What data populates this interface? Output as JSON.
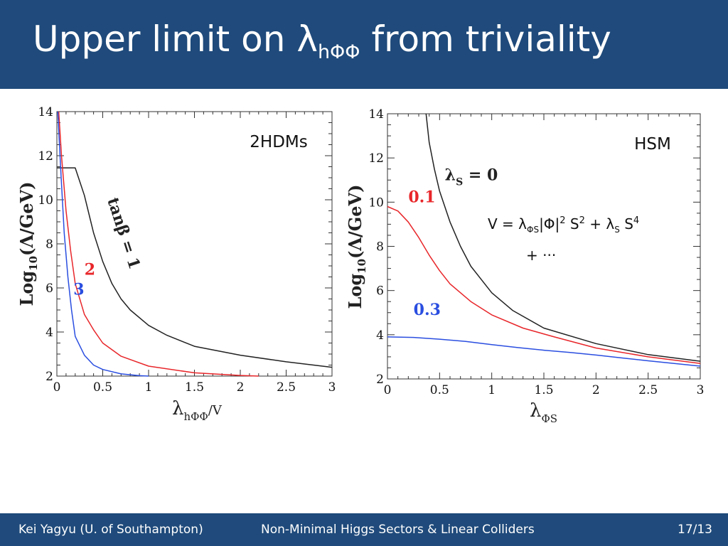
{
  "slide": {
    "title_main": "Upper limit on λ",
    "title_sub": "hΦΦ",
    "title_rest": " from triviality",
    "colors": {
      "header_bg": "#1f4a7b",
      "text": "#ffffff",
      "black_curve": "#222222",
      "red_curve": "#e8262a",
      "blue_curve": "#2a4ee0"
    }
  },
  "footer": {
    "author": "Kei Yagyu (U. of Southampton)",
    "talk": "Non-Minimal Higgs Sectors & Linear Colliders",
    "page": "17/13"
  },
  "chart_data": [
    {
      "type": "line",
      "panel_label": "2HDMs",
      "xlabel_main": "λ",
      "xlabel_sub": "hΦΦ",
      "xlabel_tail": "/V",
      "ylabel_main": "Log",
      "ylabel_sub": "10",
      "ylabel_tail": "(Λ/GeV)",
      "xlim": [
        0,
        3
      ],
      "ylim": [
        2,
        14
      ],
      "xticks": [
        "0",
        "0.5",
        "1",
        "1.5",
        "2",
        "2.5",
        "3"
      ],
      "yticks": [
        "2",
        "4",
        "6",
        "8",
        "10",
        "12",
        "14"
      ],
      "grid": false,
      "series": [
        {
          "name": "tanβ = 1",
          "color": "#222222",
          "x": [
            0,
            0.2,
            0.3,
            0.4,
            0.5,
            0.6,
            0.7,
            0.8,
            1.0,
            1.2,
            1.5,
            2.0,
            2.5,
            3.0
          ],
          "y": [
            11.45,
            11.45,
            10.2,
            8.5,
            7.2,
            6.2,
            5.5,
            5.0,
            4.3,
            3.85,
            3.35,
            2.95,
            2.65,
            2.4
          ]
        },
        {
          "name": "2",
          "color": "#e8262a",
          "x": [
            0.02,
            0.05,
            0.1,
            0.15,
            0.2,
            0.3,
            0.4,
            0.5,
            0.7,
            1.0,
            1.5,
            2.0,
            2.2
          ],
          "y": [
            14,
            12.0,
            9.5,
            7.7,
            6.2,
            4.8,
            4.1,
            3.5,
            2.9,
            2.45,
            2.15,
            2.03,
            2.0
          ]
        },
        {
          "name": "3",
          "color": "#2a4ee0",
          "x": [
            0.01,
            0.04,
            0.08,
            0.12,
            0.16,
            0.2,
            0.3,
            0.4,
            0.5,
            0.7,
            0.9,
            1.0
          ],
          "y": [
            14,
            11.5,
            8.5,
            6.5,
            5.0,
            3.8,
            2.95,
            2.5,
            2.3,
            2.1,
            2.02,
            2.0
          ]
        }
      ],
      "annotations": [
        {
          "text": "tanβ = 1",
          "x": 0.55,
          "y": 10.0,
          "color": "#222222"
        },
        {
          "text": "2",
          "x": 0.3,
          "y": 6.6,
          "color": "#e8262a"
        },
        {
          "text": "3",
          "x": 0.18,
          "y": 5.7,
          "color": "#2a4ee0"
        }
      ]
    },
    {
      "type": "line",
      "panel_label": "HSM",
      "equation_v": "V = λ",
      "equation_sub1": "ΦS",
      "equation_mid": "|Φ|",
      "equation_sup1": "2",
      "equation_s": " S",
      "equation_sup2": "2",
      "equation_plus": " + λ",
      "equation_sub2": "S",
      "equation_s4": " S",
      "equation_sup3": "4",
      "equation_line2": "+ ···",
      "xlabel_main": "λ",
      "xlabel_sub": "ΦS",
      "ylabel_main": "Log",
      "ylabel_sub": "10",
      "ylabel_tail": "(Λ/GeV)",
      "xlim": [
        0,
        3
      ],
      "ylim": [
        2,
        14
      ],
      "xticks": [
        "0",
        "0.5",
        "1",
        "1.5",
        "2",
        "2.5",
        "3"
      ],
      "yticks": [
        "2",
        "4",
        "6",
        "8",
        "10",
        "12",
        "14"
      ],
      "grid": false,
      "series": [
        {
          "name": "λS = 0",
          "color": "#222222",
          "x": [
            0.37,
            0.4,
            0.45,
            0.5,
            0.6,
            0.7,
            0.8,
            1.0,
            1.2,
            1.5,
            2.0,
            2.5,
            3.0
          ],
          "y": [
            14,
            12.7,
            11.5,
            10.5,
            9.1,
            8.0,
            7.1,
            5.9,
            5.1,
            4.3,
            3.6,
            3.1,
            2.8
          ]
        },
        {
          "name": "0.1",
          "color": "#e8262a",
          "x": [
            0,
            0.1,
            0.2,
            0.3,
            0.4,
            0.5,
            0.6,
            0.8,
            1.0,
            1.3,
            1.6,
            2.0,
            2.5,
            3.0
          ],
          "y": [
            9.8,
            9.6,
            9.1,
            8.4,
            7.6,
            6.9,
            6.3,
            5.5,
            4.9,
            4.3,
            3.9,
            3.4,
            3.0,
            2.7
          ]
        },
        {
          "name": "0.3",
          "color": "#2a4ee0",
          "x": [
            0,
            0.25,
            0.5,
            0.75,
            1.0,
            1.25,
            1.5,
            1.75,
            2.0,
            2.25,
            2.5,
            2.75,
            3.0
          ],
          "y": [
            3.9,
            3.88,
            3.8,
            3.7,
            3.55,
            3.42,
            3.3,
            3.2,
            3.08,
            2.95,
            2.82,
            2.7,
            2.58
          ]
        }
      ],
      "annotations": [
        {
          "text": "λ",
          "sub": "S",
          "tail": " = 0",
          "x": 0.55,
          "y": 11.0,
          "color": "#222222"
        },
        {
          "text": "0.1",
          "x": 0.2,
          "y": 10.0,
          "color": "#e8262a"
        },
        {
          "text": "0.3",
          "x": 0.25,
          "y": 4.9,
          "color": "#2a4ee0"
        }
      ]
    }
  ]
}
